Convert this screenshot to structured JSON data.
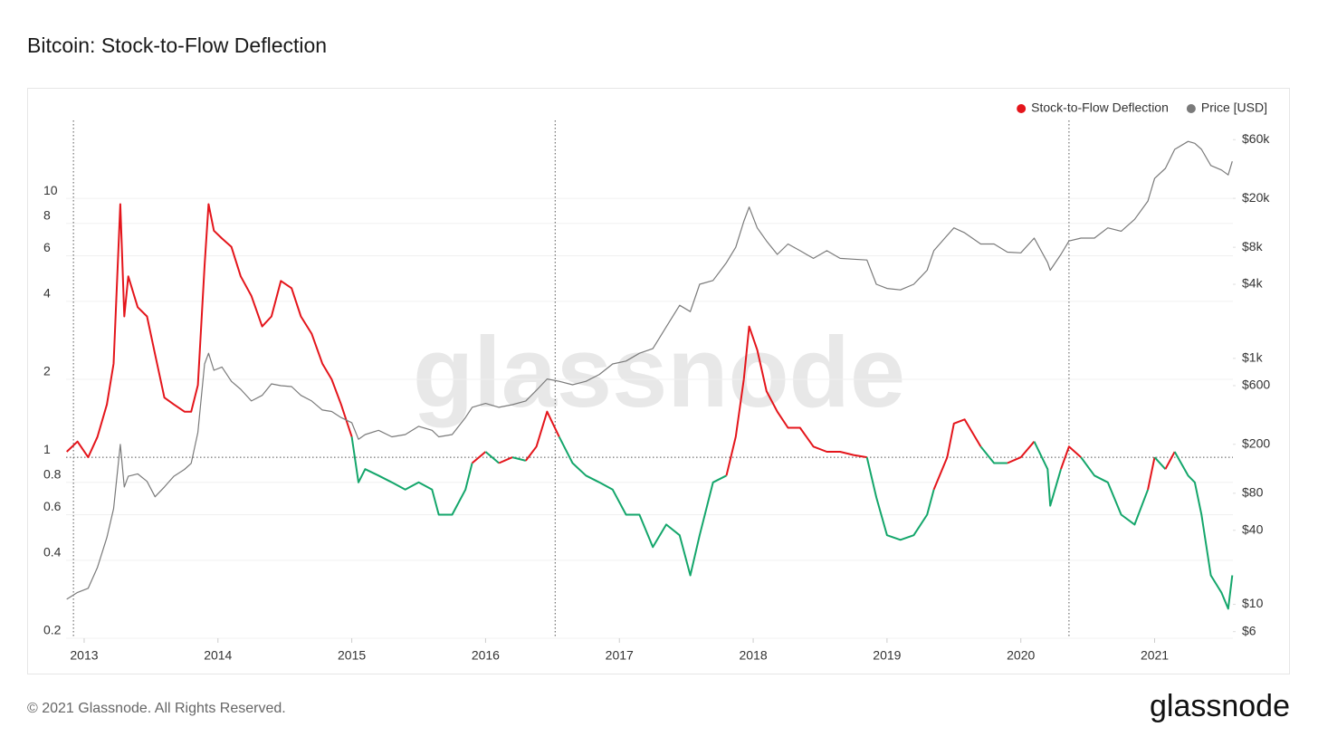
{
  "chart_data": {
    "type": "line",
    "title": "Bitcoin: Stock-to-Flow Deflection",
    "watermark": "glassnode",
    "footer": "© 2021 Glassnode. All Rights Reserved.",
    "logo": "glassnode",
    "log_scale": true,
    "grid": true,
    "legend": "top-right",
    "xlim": [
      2012.865,
      2021.585
    ],
    "xticks": [
      2013,
      2014,
      2015,
      2016,
      2017,
      2018,
      2019,
      2020,
      2021
    ],
    "ylim": [
      0.2,
      20
    ],
    "yticks": [
      0.2,
      0.4,
      0.6,
      0.8,
      1,
      2,
      4,
      6,
      8,
      10
    ],
    "y2lim": [
      5.3,
      86000
    ],
    "y2ticks": [
      {
        "value": 6,
        "label": "$6"
      },
      {
        "value": 10,
        "label": "$10"
      },
      {
        "value": 40,
        "label": "$40"
      },
      {
        "value": 80,
        "label": "$80"
      },
      {
        "value": 200,
        "label": "$200"
      },
      {
        "value": 600,
        "label": "$600"
      },
      {
        "value": 1000,
        "label": "$1k"
      },
      {
        "value": 4000,
        "label": "$4k"
      },
      {
        "value": 8000,
        "label": "$8k"
      },
      {
        "value": 20000,
        "label": "$20k"
      },
      {
        "value": 60000,
        "label": "$60k"
      }
    ],
    "hline": 1,
    "vlines": [
      2012.92,
      2016.52,
      2020.36
    ],
    "x": [
      2012.87,
      2012.95,
      2013.03,
      2013.1,
      2013.17,
      2013.22,
      2013.27,
      2013.3,
      2013.33,
      2013.4,
      2013.47,
      2013.53,
      2013.6,
      2013.67,
      2013.75,
      2013.8,
      2013.85,
      2013.9,
      2013.93,
      2013.97,
      2014.03,
      2014.1,
      2014.17,
      2014.25,
      2014.33,
      2014.4,
      2014.47,
      2014.55,
      2014.62,
      2014.7,
      2014.78,
      2014.85,
      2014.92,
      2015.0,
      2015.05,
      2015.1,
      2015.2,
      2015.3,
      2015.4,
      2015.5,
      2015.6,
      2015.65,
      2015.75,
      2015.85,
      2015.9,
      2016.0,
      2016.1,
      2016.2,
      2016.3,
      2016.38,
      2016.46,
      2016.55,
      2016.65,
      2016.75,
      2016.85,
      2016.95,
      2017.05,
      2017.15,
      2017.25,
      2017.35,
      2017.45,
      2017.53,
      2017.6,
      2017.7,
      2017.8,
      2017.87,
      2017.93,
      2017.97,
      2018.03,
      2018.1,
      2018.18,
      2018.26,
      2018.35,
      2018.45,
      2018.55,
      2018.65,
      2018.75,
      2018.85,
      2018.92,
      2019.0,
      2019.1,
      2019.2,
      2019.3,
      2019.35,
      2019.45,
      2019.5,
      2019.58,
      2019.7,
      2019.8,
      2019.9,
      2020.0,
      2020.1,
      2020.2,
      2020.22,
      2020.3,
      2020.36,
      2020.45,
      2020.55,
      2020.65,
      2020.75,
      2020.85,
      2020.95,
      2021.0,
      2021.08,
      2021.15,
      2021.25,
      2021.3,
      2021.35,
      2021.42,
      2021.5,
      2021.55,
      2021.58
    ],
    "series": [
      {
        "name": "Stock-to-Flow Deflection",
        "color": "#e4151b",
        "color_below": "#14a66b",
        "threshold": 1,
        "values": [
          1.05,
          1.15,
          1.0,
          1.2,
          1.6,
          2.3,
          9.5,
          3.5,
          5.0,
          3.8,
          3.5,
          2.5,
          1.7,
          1.6,
          1.5,
          1.5,
          1.9,
          5.5,
          9.5,
          7.5,
          7.0,
          6.5,
          5.0,
          4.2,
          3.2,
          3.5,
          4.8,
          4.5,
          3.5,
          3.0,
          2.3,
          2.0,
          1.6,
          1.2,
          0.8,
          0.9,
          0.85,
          0.8,
          0.75,
          0.8,
          0.75,
          0.6,
          0.6,
          0.75,
          0.95,
          1.05,
          0.95,
          1.0,
          0.97,
          1.1,
          1.5,
          1.2,
          0.95,
          0.85,
          0.8,
          0.75,
          0.6,
          0.6,
          0.45,
          0.55,
          0.5,
          0.35,
          0.5,
          0.8,
          0.85,
          1.2,
          2.0,
          3.2,
          2.6,
          1.8,
          1.5,
          1.3,
          1.3,
          1.1,
          1.05,
          1.05,
          1.02,
          1.0,
          0.7,
          0.5,
          0.48,
          0.5,
          0.6,
          0.75,
          1.0,
          1.35,
          1.4,
          1.1,
          0.95,
          0.95,
          1.0,
          1.15,
          0.9,
          0.65,
          0.9,
          1.1,
          1.0,
          0.85,
          0.8,
          0.6,
          0.55,
          0.75,
          1.0,
          0.9,
          1.05,
          0.85,
          0.8,
          0.6,
          0.35,
          0.3,
          0.26,
          0.35
        ]
      },
      {
        "name": "Price [USD]",
        "color": "#7a7a7a",
        "axis": "y2",
        "values": [
          11,
          12.5,
          13.5,
          20,
          35,
          60,
          200,
          90,
          110,
          115,
          100,
          75,
          90,
          110,
          125,
          140,
          250,
          900,
          1100,
          800,
          850,
          650,
          560,
          450,
          500,
          620,
          600,
          590,
          500,
          450,
          380,
          370,
          330,
          300,
          220,
          240,
          260,
          230,
          240,
          280,
          260,
          230,
          240,
          330,
          400,
          430,
          400,
          420,
          450,
          550,
          680,
          650,
          610,
          650,
          740,
          900,
          950,
          1100,
          1200,
          1800,
          2700,
          2400,
          4000,
          4300,
          6000,
          8000,
          13000,
          17000,
          11500,
          9000,
          7000,
          8500,
          7500,
          6500,
          7500,
          6500,
          6400,
          6300,
          4000,
          3700,
          3600,
          4000,
          5200,
          7500,
          10000,
          11500,
          10500,
          8500,
          8500,
          7300,
          7200,
          9500,
          6000,
          5200,
          7000,
          9000,
          9500,
          9500,
          11500,
          10800,
          13500,
          19000,
          29000,
          35000,
          50000,
          58000,
          56000,
          50000,
          37000,
          34000,
          31000,
          40000
        ]
      }
    ]
  }
}
